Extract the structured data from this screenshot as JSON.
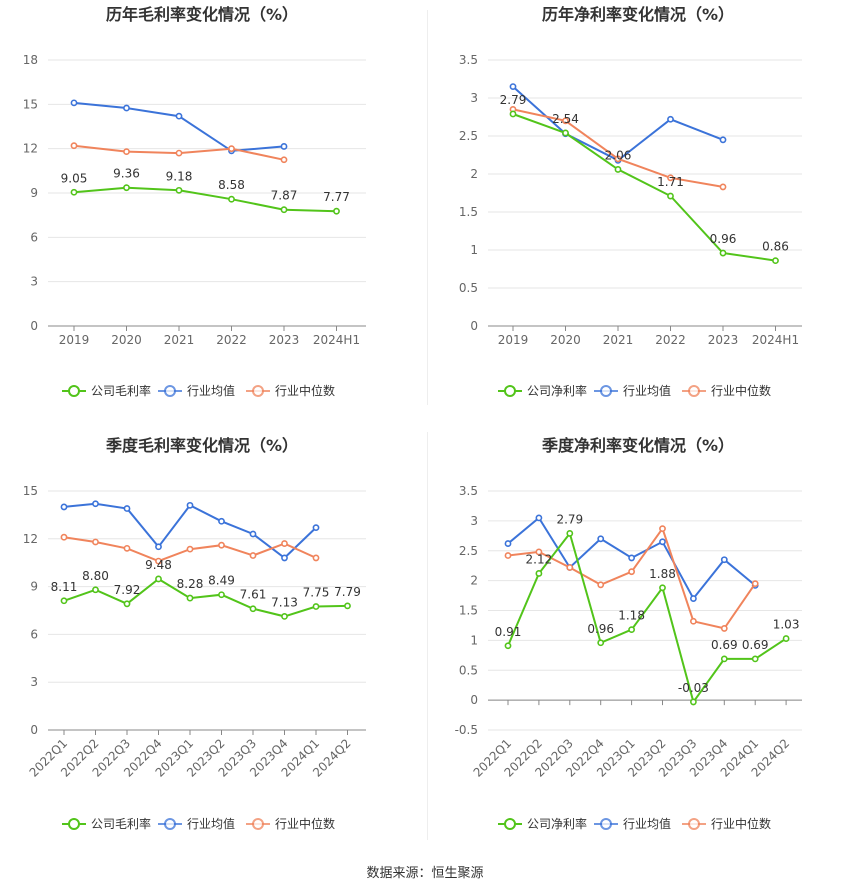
{
  "source_text": "数据来源：恒生聚源",
  "colors": {
    "company": "#52c41a",
    "avg": "#3b73d9",
    "median": "#f0845c",
    "grid": "#e6e6e6",
    "axis": "#666666"
  },
  "chart_data": [
    {
      "type": "line",
      "title": "历年毛利率变化情况（%）",
      "categories": [
        "2019",
        "2020",
        "2021",
        "2022",
        "2023",
        "2024H1"
      ],
      "ylim": [
        0,
        18
      ],
      "yticks": [
        0,
        3,
        6,
        9,
        12,
        15,
        18
      ],
      "ytick_labels": [
        "0",
        "3",
        "6",
        "9",
        "12",
        "15",
        "18"
      ],
      "rotate_x": false,
      "series": [
        {
          "name": "公司毛利率",
          "key": "company",
          "values": [
            9.05,
            9.36,
            9.18,
            8.58,
            7.87,
            7.77
          ],
          "labels": [
            "9.05",
            "9.36",
            "9.18",
            "8.58",
            "7.87",
            "7.77"
          ]
        },
        {
          "name": "行业均值",
          "key": "avg",
          "values": [
            15.1,
            14.75,
            14.2,
            11.85,
            12.15,
            null
          ]
        },
        {
          "name": "行业中位数",
          "key": "median",
          "values": [
            12.2,
            11.8,
            11.7,
            12.0,
            11.25,
            null
          ]
        }
      ]
    },
    {
      "type": "line",
      "title": "历年净利率变化情况（%）",
      "categories": [
        "2019",
        "2020",
        "2021",
        "2022",
        "2023",
        "2024H1"
      ],
      "ylim": [
        0,
        3.5
      ],
      "yticks": [
        0,
        0.5,
        1,
        1.5,
        2,
        2.5,
        3,
        3.5
      ],
      "ytick_labels": [
        "0",
        "0.5",
        "1",
        "1.5",
        "2",
        "2.5",
        "3",
        "3.5"
      ],
      "rotate_x": false,
      "series": [
        {
          "name": "公司净利率",
          "key": "company",
          "values": [
            2.79,
            2.54,
            2.06,
            1.71,
            0.96,
            0.86
          ],
          "labels": [
            "2.79",
            "2.54",
            "2.06",
            "1.71",
            "0.96",
            "0.86"
          ]
        },
        {
          "name": "行业均值",
          "key": "avg",
          "values": [
            3.15,
            2.53,
            2.18,
            2.72,
            2.45,
            null
          ]
        },
        {
          "name": "行业中位数",
          "key": "median",
          "values": [
            2.85,
            2.7,
            2.2,
            1.95,
            1.83,
            null
          ]
        }
      ]
    },
    {
      "type": "line",
      "title": "季度毛利率变化情况（%）",
      "categories": [
        "2022Q1",
        "2022Q2",
        "2022Q3",
        "2022Q4",
        "2023Q1",
        "2023Q2",
        "2023Q3",
        "2023Q4",
        "2024Q1",
        "2024Q2"
      ],
      "ylim": [
        0,
        15
      ],
      "yticks": [
        0,
        3,
        6,
        9,
        12,
        15
      ],
      "ytick_labels": [
        "0",
        "3",
        "6",
        "9",
        "12",
        "15"
      ],
      "rotate_x": true,
      "series": [
        {
          "name": "公司毛利率",
          "key": "company",
          "values": [
            8.11,
            8.8,
            7.92,
            9.48,
            8.28,
            8.49,
            7.61,
            7.13,
            7.75,
            7.79
          ],
          "labels": [
            "8.11",
            "8.80",
            "7.92",
            "9.48",
            "8.28",
            "8.49",
            "7.61",
            "7.13",
            "7.75",
            "7.79"
          ]
        },
        {
          "name": "行业均值",
          "key": "avg",
          "values": [
            14.0,
            14.2,
            13.9,
            11.5,
            14.1,
            13.1,
            12.3,
            10.8,
            12.7,
            null
          ]
        },
        {
          "name": "行业中位数",
          "key": "median",
          "values": [
            12.1,
            11.8,
            11.4,
            10.6,
            11.35,
            11.6,
            10.95,
            11.7,
            10.8,
            null
          ]
        }
      ]
    },
    {
      "type": "line",
      "title": "季度净利率变化情况（%）",
      "categories": [
        "2022Q1",
        "2022Q2",
        "2022Q3",
        "2022Q4",
        "2023Q1",
        "2023Q2",
        "2023Q3",
        "2023Q4",
        "2024Q1",
        "2024Q2"
      ],
      "ylim": [
        -0.5,
        3.5
      ],
      "yticks": [
        -0.5,
        0,
        0.5,
        1,
        1.5,
        2,
        2.5,
        3,
        3.5
      ],
      "ytick_labels": [
        "-0.5",
        "0",
        "0.5",
        "1",
        "1.5",
        "2",
        "2.5",
        "3",
        "3.5"
      ],
      "rotate_x": true,
      "series": [
        {
          "name": "公司净利率",
          "key": "company",
          "values": [
            0.91,
            2.12,
            2.79,
            0.96,
            1.18,
            1.88,
            -0.03,
            0.69,
            0.69,
            1.03
          ],
          "labels": [
            "0.91",
            "2.12",
            "2.79",
            "0.96",
            "1.18",
            "1.88",
            "-0.03",
            "0.69",
            "0.69",
            "1.03"
          ]
        },
        {
          "name": "行业均值",
          "key": "avg",
          "values": [
            2.62,
            3.05,
            2.22,
            2.7,
            2.38,
            2.65,
            1.7,
            2.35,
            1.92,
            null
          ]
        },
        {
          "name": "行业中位数",
          "key": "median",
          "values": [
            2.42,
            2.48,
            2.22,
            1.93,
            2.15,
            2.87,
            1.32,
            1.2,
            1.95,
            null
          ]
        }
      ]
    }
  ]
}
